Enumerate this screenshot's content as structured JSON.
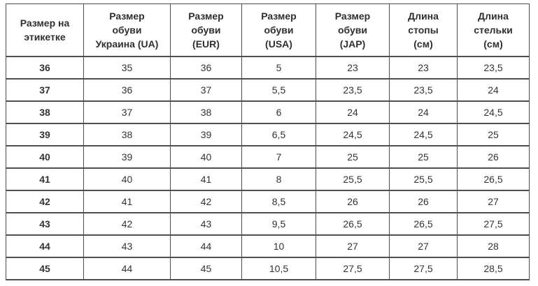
{
  "table": {
    "title": "shoe-size-conversion",
    "columns": [
      "Размер на\nэтикетке",
      "Размер\nобуви\nУкраина (UA)",
      "Размер\nобуви\n(EUR)",
      "Размер\nобуви\n(USA)",
      "Размер\nобуви\n(JAP)",
      "Длина\nстопы\n(см)",
      "Длина\nстельки\n(см)"
    ],
    "rows": [
      [
        "36",
        "35",
        "36",
        "5",
        "23",
        "23",
        "23,5"
      ],
      [
        "37",
        "36",
        "37",
        "5,5",
        "23,5",
        "23,5",
        "24"
      ],
      [
        "38",
        "37",
        "38",
        "6",
        "24",
        "24",
        "24,5"
      ],
      [
        "39",
        "38",
        "39",
        "6,5",
        "24,5",
        "24,5",
        "25"
      ],
      [
        "40",
        "39",
        "40",
        "7",
        "25",
        "25",
        "26"
      ],
      [
        "41",
        "40",
        "41",
        "8",
        "25,5",
        "25,5",
        "26,5"
      ],
      [
        "42",
        "41",
        "42",
        "8,5",
        "26",
        "26",
        "27"
      ],
      [
        "43",
        "42",
        "43",
        "9,5",
        "26,5",
        "26,5",
        "27,5"
      ],
      [
        "44",
        "43",
        "44",
        "10",
        "27",
        "27",
        "28"
      ],
      [
        "45",
        "44",
        "45",
        "10,5",
        "27,5",
        "27,5",
        "28,5"
      ]
    ]
  },
  "colors": {
    "border": "#4d4d4d",
    "text": "#333333",
    "header_text": "#2f2f2f",
    "background": "#ffffff"
  }
}
